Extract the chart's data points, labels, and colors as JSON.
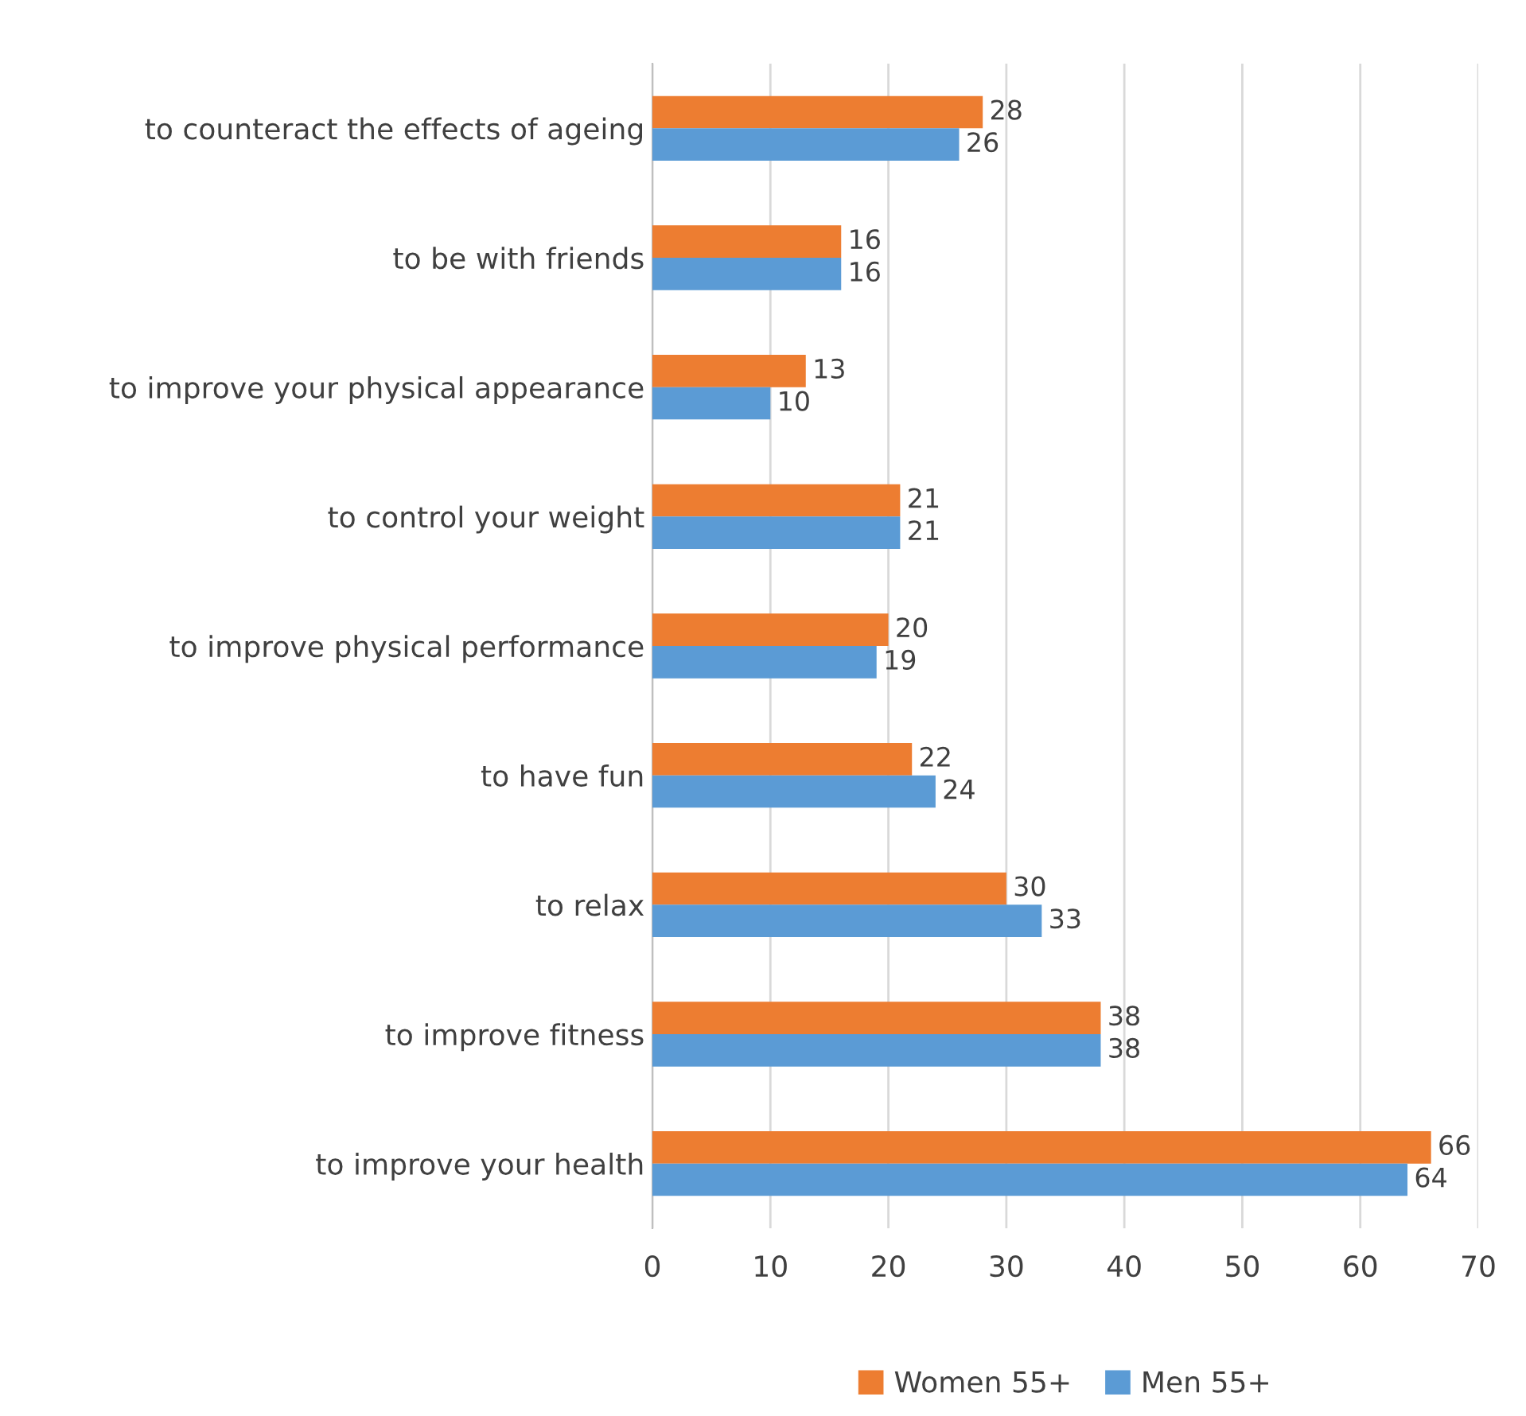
{
  "chart_data": {
    "type": "bar",
    "orientation": "horizontal",
    "categories": [
      "to counteract the effects of ageing",
      "to be with friends",
      "to improve your physical appearance",
      "to control your weight",
      "to improve physical performance",
      "to have fun",
      "to relax",
      "to improve fitness",
      "to improve your health"
    ],
    "series": [
      {
        "name": "Women 55+",
        "color": "#ed7d31",
        "values": [
          28,
          16,
          13,
          21,
          20,
          22,
          30,
          38,
          66
        ]
      },
      {
        "name": "Men 55+",
        "color": "#5b9bd5",
        "values": [
          26,
          16,
          10,
          21,
          19,
          24,
          33,
          38,
          64
        ]
      }
    ],
    "xlim": [
      0,
      70
    ],
    "xticks": [
      0,
      10,
      20,
      30,
      40,
      50,
      60,
      70
    ],
    "grid": "x",
    "legend": "bottom",
    "data_labels": true
  }
}
